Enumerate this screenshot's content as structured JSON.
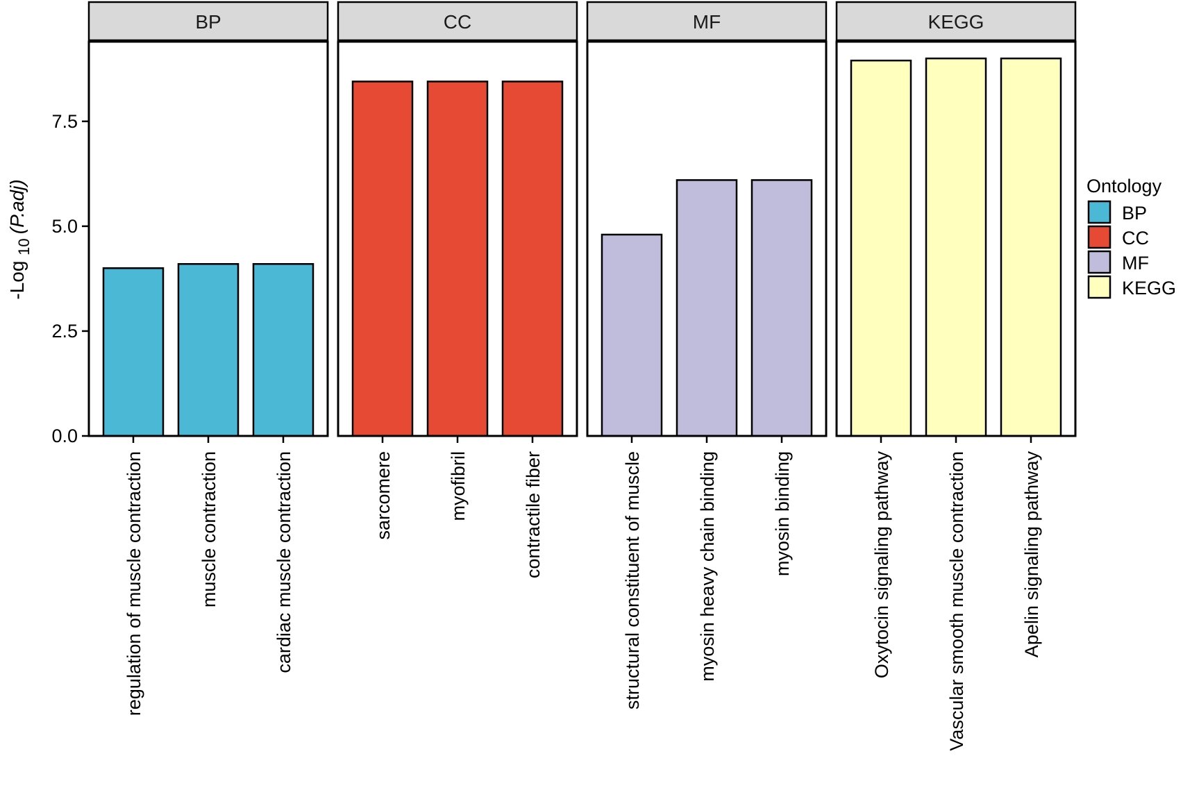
{
  "chart_data": {
    "type": "bar",
    "facets": [
      {
        "name": "BP",
        "color": "#4bb8d6",
        "categories": [
          "regulation of muscle contraction",
          "muscle contraction",
          "cardiac muscle contraction"
        ],
        "values": [
          4.0,
          4.1,
          4.1
        ]
      },
      {
        "name": "CC",
        "color": "#e64a35",
        "categories": [
          "sarcomere",
          "myofibril",
          "contractile fiber"
        ],
        "values": [
          8.45,
          8.45,
          8.45
        ]
      },
      {
        "name": "MF",
        "color": "#bfbcdc",
        "categories": [
          "structural constituent of muscle",
          "myosin heavy chain binding",
          "myosin binding"
        ],
        "values": [
          4.8,
          6.1,
          6.1
        ]
      },
      {
        "name": "KEGG",
        "color": "#ffffbe",
        "categories": [
          "Oxytocin signaling pathway",
          "Vascular smooth muscle contraction",
          "Apelin signaling pathway"
        ],
        "values": [
          8.95,
          9.0,
          9.0
        ]
      }
    ],
    "ylabel_prefix": "-Log",
    "ylabel_subscript": "10",
    "ylabel_term": "(P.adj)",
    "ylim": [
      0,
      9.4
    ],
    "yticks": [
      0.0,
      2.5,
      5.0,
      7.5
    ],
    "ytick_labels": [
      "0.0",
      "2.5",
      "5.0",
      "7.5"
    ],
    "legend": {
      "title": "Ontology",
      "position": "right",
      "items": [
        {
          "label": "BP",
          "color": "#4bb8d6"
        },
        {
          "label": "CC",
          "color": "#e64a35"
        },
        {
          "label": "MF",
          "color": "#bfbcdc"
        },
        {
          "label": "KEGG",
          "color": "#ffffbe"
        }
      ]
    },
    "grid": false
  }
}
